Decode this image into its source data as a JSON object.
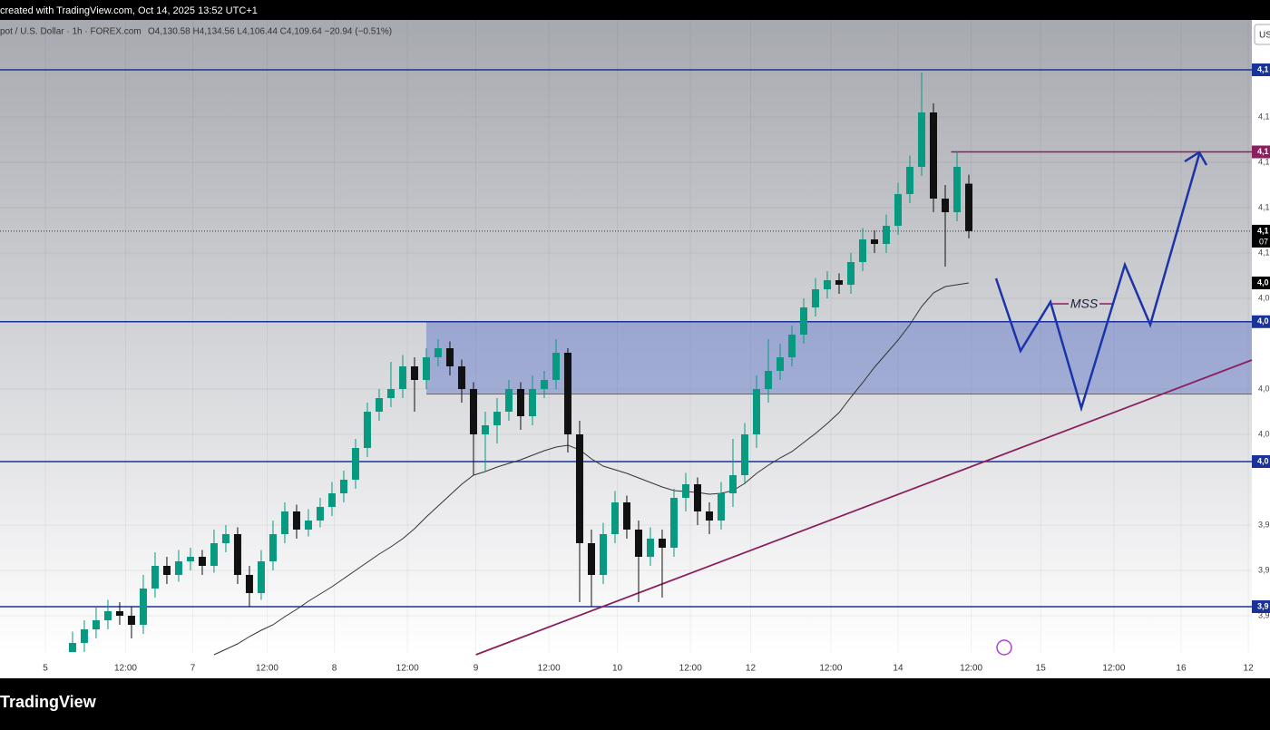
{
  "header": {
    "created": "created with TradingView.com, Oct 14, 2025 13:52 UTC+1",
    "symbol": "pot / U.S. Dollar · 1h · FOREX.com",
    "ohlc": "O4,130.58 H4,134.56 L4,106.44 C4,109.64 −20.94 (−0.51%)",
    "currency_button": "US"
  },
  "footer": {
    "logo": "TradingView"
  },
  "chart_data": {
    "type": "candlestick",
    "series": [
      {
        "up_color": "#089981",
        "down_color": "#111111",
        "open": [
          3924,
          3928,
          3934,
          3938,
          3942,
          3940,
          3936,
          3952,
          3962,
          3958,
          3964,
          3966,
          3962,
          3972,
          3976,
          3958,
          3950,
          3964,
          3976,
          3986,
          3978,
          3982,
          3988,
          3994,
          4000,
          4014,
          4030,
          4036,
          4040,
          4050,
          4044,
          4054,
          4058,
          4050,
          4040,
          4020,
          4024,
          4030,
          4040,
          4028,
          4040,
          4044,
          4056,
          4020,
          3972,
          3958,
          3976,
          3990,
          3978,
          3966,
          3974,
          3970,
          3992,
          3998,
          3986,
          3982,
          3994,
          4002,
          4020,
          4040,
          4048,
          4054,
          4064,
          4076,
          4084,
          4088,
          4086,
          4096,
          4106,
          4104,
          4112,
          4126,
          4138,
          4162,
          4124,
          4118,
          4130.58
        ],
        "high": [
          3933,
          3938,
          3944,
          3947,
          3946,
          3944,
          3958,
          3968,
          3966,
          3969,
          3970,
          3969,
          3978,
          3980,
          3979,
          3962,
          3969,
          3982,
          3990,
          3989,
          3987,
          3992,
          3999,
          4004,
          4018,
          4034,
          4040,
          4052,
          4055,
          4054,
          4058,
          4062,
          4061,
          4053,
          4043,
          4030,
          4036,
          4044,
          4043,
          4046,
          4048,
          4062,
          4058,
          4026,
          3978,
          3981,
          3995,
          3993,
          3982,
          3979,
          3978,
          3996,
          4003,
          4001,
          3990,
          3999,
          4018,
          4025,
          4046,
          4062,
          4060,
          4068,
          4080,
          4089,
          4092,
          4091,
          4100,
          4111,
          4110,
          4117,
          4131,
          4143,
          4179.6,
          4166,
          4130,
          4145,
          4134.56
        ],
        "low": [
          3924,
          3924,
          3930,
          3934,
          3936,
          3930,
          3932,
          3948,
          3954,
          3955,
          3960,
          3958,
          3959,
          3968,
          3954,
          3944,
          3947,
          3960,
          3972,
          3974,
          3975,
          3979,
          3984,
          3990,
          3996,
          4010,
          4026,
          4032,
          4036,
          4030,
          4040,
          4050,
          4046,
          4034,
          4002,
          4004,
          4016,
          4026,
          4022,
          4024,
          4036,
          4040,
          4012,
          3946,
          3944,
          3954,
          3972,
          3974,
          3946,
          3962,
          3948,
          3966,
          3986,
          3980,
          3976,
          3978,
          3988,
          3998,
          4014,
          4034,
          4044,
          4050,
          4060,
          4072,
          4080,
          4082,
          4082,
          4092,
          4100,
          4100,
          4108,
          4122,
          4134,
          4118,
          4094,
          4114,
          4106.44
        ],
        "close": [
          3928,
          3934,
          3938,
          3942,
          3940,
          3936,
          3952,
          3962,
          3958,
          3964,
          3966,
          3962,
          3972,
          3976,
          3958,
          3950,
          3964,
          3976,
          3986,
          3978,
          3982,
          3988,
          3994,
          4000,
          4014,
          4030,
          4036,
          4040,
          4050,
          4044,
          4054,
          4058,
          4050,
          4040,
          4020,
          4024,
          4030,
          4040,
          4028,
          4040,
          4044,
          4056,
          4020,
          3972,
          3958,
          3976,
          3990,
          3978,
          3966,
          3974,
          3970,
          3992,
          3998,
          3986,
          3982,
          3994,
          4002,
          4020,
          4040,
          4048,
          4054,
          4064,
          4076,
          4084,
          4088,
          4086,
          4096,
          4106,
          4104,
          4112,
          4126,
          4138,
          4162,
          4124,
          4118,
          4138,
          4109.64
        ]
      }
    ],
    "moving_average": {
      "color": "#333333",
      "values": [
        null,
        null,
        null,
        null,
        null,
        null,
        null,
        null,
        null,
        null,
        null,
        null,
        3922.8,
        3925.2,
        3927.6,
        3930.8,
        3933.6,
        3936,
        3939.6,
        3942.8,
        3946.4,
        3949.6,
        3952.8,
        3956.4,
        3960,
        3963.6,
        3967.2,
        3970.4,
        3974,
        3978.4,
        3983.6,
        3988.4,
        3993.2,
        3998,
        4002,
        4003.6,
        4005.6,
        4007.2,
        4008.8,
        4010.8,
        4012.8,
        4014.4,
        4015.2,
        4013.2,
        4009.2,
        4006,
        4004.4,
        4002.8,
        4000.8,
        3998.8,
        3996.8,
        3995.2,
        3994.8,
        3994.4,
        3993.6,
        3994,
        3995.2,
        3998.4,
        4002.8,
        4006.4,
        4009.6,
        4012.4,
        4016.4,
        4020.4,
        4024.8,
        4029.6,
        4036.4,
        4042.8,
        4049.6,
        4055.6,
        4061.6,
        4068.4,
        4076.4,
        4082.4,
        4085.2,
        4086,
        4086.8
      ],
      "label": "4,0"
    },
    "xlim": [
      -6.15,
      100
    ],
    "ylim": [
      3923.6,
      4202.8
    ],
    "xticks": [
      {
        "value": -2.3,
        "label": "5"
      },
      {
        "value": 4.5,
        "label": "12:00"
      },
      {
        "value": 10.2,
        "label": "7"
      },
      {
        "value": 16.5,
        "label": "12:00"
      },
      {
        "value": 22.2,
        "label": "8"
      },
      {
        "value": 28.4,
        "label": "12:00"
      },
      {
        "value": 34.2,
        "label": "9"
      },
      {
        "value": 40.4,
        "label": "12:00"
      },
      {
        "value": 46.2,
        "label": "10"
      },
      {
        "value": 52.4,
        "label": "12:00"
      },
      {
        "value": 57.5,
        "label": "12"
      },
      {
        "value": 64.3,
        "label": "12:00"
      },
      {
        "value": 70,
        "label": "14"
      },
      {
        "value": 76.2,
        "label": "12:00"
      },
      {
        "value": 82.1,
        "label": "15"
      },
      {
        "value": 88.3,
        "label": "12:00"
      },
      {
        "value": 94,
        "label": "16"
      },
      {
        "value": 99.7,
        "label": "12"
      }
    ],
    "yticks": [
      {
        "value": 4160,
        "label": "4,1"
      },
      {
        "value": 4140,
        "label": "4,1"
      },
      {
        "value": 4120,
        "label": "4,1"
      },
      {
        "value": 4100,
        "label": "4,1"
      },
      {
        "value": 4080,
        "label": "4,0"
      },
      {
        "value": 4040,
        "label": "4,0"
      },
      {
        "value": 4020,
        "label": "4,0"
      },
      {
        "value": 3980,
        "label": "3,9"
      },
      {
        "value": 3960,
        "label": "3,9"
      },
      {
        "value": 3940,
        "label": "3,9"
      }
    ],
    "grid": true,
    "levels": [
      {
        "value": 4180.8,
        "label": "4,1",
        "color": "#1a3399",
        "x_start": -6.15
      },
      {
        "value": 4144.6,
        "label": "4,1",
        "color": "#8b1e5e",
        "x_start": 74.5
      },
      {
        "value": 4069.7,
        "label": "4,0",
        "color": "#1a3399",
        "x_start": -6.15
      },
      {
        "value": 4008,
        "label": "4,0",
        "color": "#1a3399",
        "x_start": -6.15
      },
      {
        "value": 3944,
        "label": "3,9",
        "color": "#1a3399",
        "x_start": -6.15
      }
    ],
    "zone": {
      "top": 4069.7,
      "bottom": 4037.8,
      "x_start": 30,
      "color": "#4a67c9"
    },
    "trendline": {
      "x": [
        34.2,
        100
      ],
      "y": [
        3922.8,
        4052.8
      ],
      "color": "#8b1e5e"
    },
    "last_price": {
      "value": 4109.64,
      "label": "4,1",
      "countdown": "07"
    },
    "annotation": "MSS"
  }
}
